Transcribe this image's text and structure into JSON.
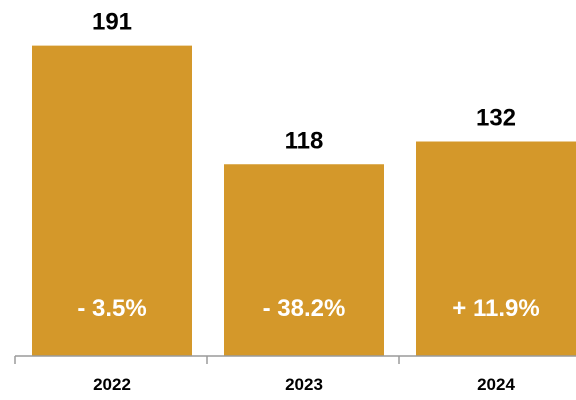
{
  "chart_data": {
    "type": "bar",
    "categories": [
      "2022",
      "2023",
      "2024"
    ],
    "values": [
      191,
      118,
      132
    ],
    "value_labels": [
      "191",
      "118",
      "132"
    ],
    "change_labels": [
      "- 3.5%",
      "- 38.2%",
      "+ 11.9%"
    ],
    "title": "",
    "xlabel": "",
    "ylabel": "",
    "ylim": [
      0,
      200
    ],
    "grid": false,
    "legend": "none",
    "bar_color": "#D4982A",
    "change_label_color": "#ffffff",
    "value_label_color": "#000000",
    "axis_color": "#9a9a9a"
  }
}
